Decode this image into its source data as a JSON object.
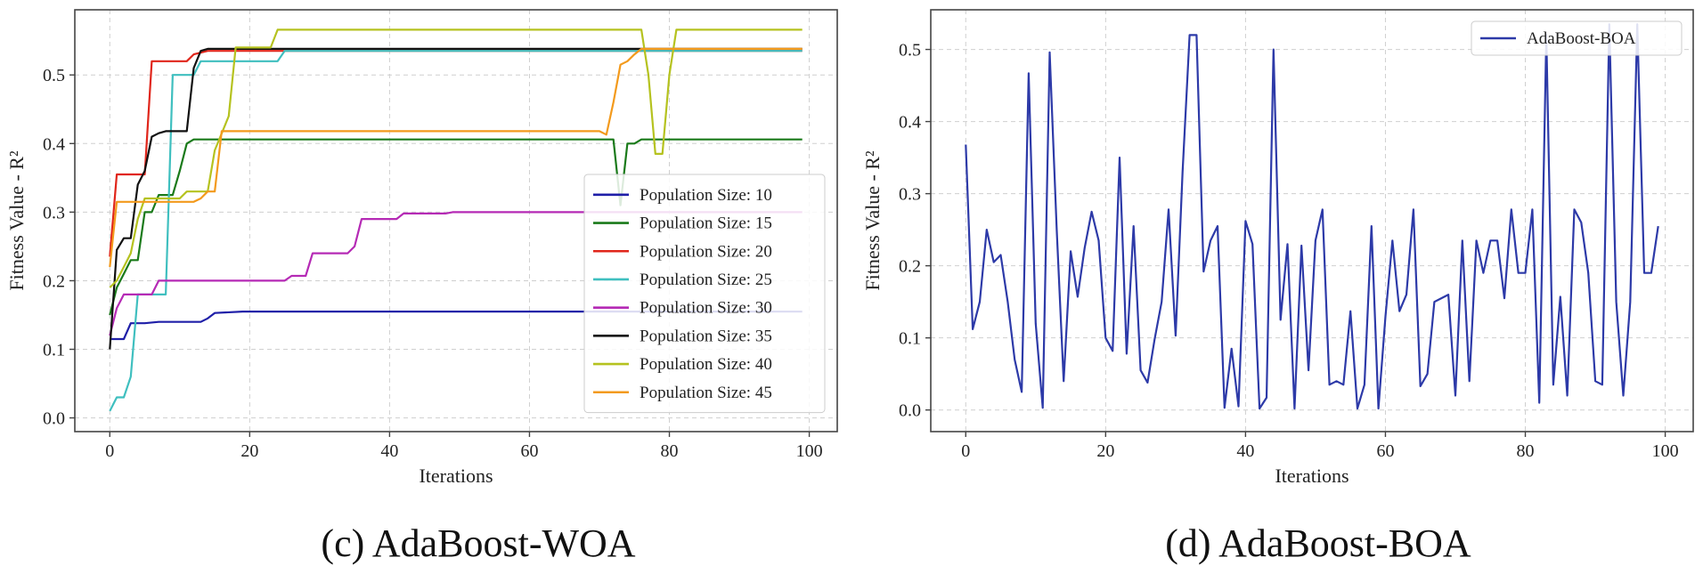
{
  "chart_data": [
    {
      "type": "line",
      "caption": "(c) AdaBoost-WOA",
      "xlabel": "Iterations",
      "ylabel": "Fitness Value - R²",
      "xlim": [
        -5,
        104
      ],
      "ylim": [
        -0.02,
        0.595
      ],
      "xticks": [
        0,
        20,
        40,
        60,
        80,
        100
      ],
      "yticks": [
        0.0,
        0.1,
        0.2,
        0.3,
        0.4,
        0.5
      ],
      "legend_position": "lower-right",
      "series": [
        {
          "name": "Population Size: 10",
          "color": "#1f1fa8",
          "points": [
            [
              0,
              0.115
            ],
            [
              2,
              0.115
            ],
            [
              3,
              0.138
            ],
            [
              5,
              0.138
            ],
            [
              7,
              0.14
            ],
            [
              13,
              0.14
            ],
            [
              14,
              0.145
            ],
            [
              15,
              0.153
            ],
            [
              19,
              0.155
            ],
            [
              73,
              0.155
            ],
            [
              74,
              0.155
            ],
            [
              99,
              0.155
            ]
          ]
        },
        {
          "name": "Population Size: 15",
          "color": "#1a7a1a",
          "points": [
            [
              0,
              0.15
            ],
            [
              1,
              0.19
            ],
            [
              2,
              0.21
            ],
            [
              3,
              0.23
            ],
            [
              4,
              0.23
            ],
            [
              5,
              0.3
            ],
            [
              6,
              0.3
            ],
            [
              7,
              0.325
            ],
            [
              9,
              0.325
            ],
            [
              10,
              0.36
            ],
            [
              11,
              0.4
            ],
            [
              12,
              0.406
            ],
            [
              72,
              0.406
            ],
            [
              73,
              0.31
            ],
            [
              74,
              0.4
            ],
            [
              75,
              0.4
            ],
            [
              76,
              0.406
            ],
            [
              99,
              0.406
            ]
          ]
        },
        {
          "name": "Population Size: 20",
          "color": "#e0261b",
          "points": [
            [
              0,
              0.235
            ],
            [
              1,
              0.355
            ],
            [
              5,
              0.355
            ],
            [
              6,
              0.52
            ],
            [
              11,
              0.52
            ],
            [
              12,
              0.53
            ],
            [
              14,
              0.535
            ],
            [
              99,
              0.535
            ]
          ]
        },
        {
          "name": "Population Size: 25",
          "color": "#3fbfbf",
          "points": [
            [
              0,
              0.01
            ],
            [
              1,
              0.03
            ],
            [
              2,
              0.03
            ],
            [
              3,
              0.06
            ],
            [
              4,
              0.18
            ],
            [
              8,
              0.18
            ],
            [
              9,
              0.5
            ],
            [
              12,
              0.5
            ],
            [
              13,
              0.52
            ],
            [
              24,
              0.52
            ],
            [
              25,
              0.535
            ],
            [
              99,
              0.535
            ]
          ]
        },
        {
          "name": "Population Size: 30",
          "color": "#b52ab5",
          "points": [
            [
              0,
              0.12
            ],
            [
              1,
              0.16
            ],
            [
              2,
              0.18
            ],
            [
              6,
              0.18
            ],
            [
              7,
              0.2
            ],
            [
              20,
              0.2
            ],
            [
              25,
              0.2
            ],
            [
              26,
              0.207
            ],
            [
              28,
              0.207
            ],
            [
              29,
              0.24
            ],
            [
              34,
              0.24
            ],
            [
              35,
              0.25
            ],
            [
              36,
              0.29
            ],
            [
              41,
              0.29
            ],
            [
              42,
              0.298
            ],
            [
              48,
              0.298
            ],
            [
              49,
              0.3
            ],
            [
              99,
              0.3
            ]
          ]
        },
        {
          "name": "Population Size: 35",
          "color": "#111111",
          "points": [
            [
              0,
              0.1
            ],
            [
              1,
              0.245
            ],
            [
              2,
              0.262
            ],
            [
              3,
              0.262
            ],
            [
              4,
              0.34
            ],
            [
              5,
              0.36
            ],
            [
              6,
              0.41
            ],
            [
              7,
              0.415
            ],
            [
              8,
              0.418
            ],
            [
              11,
              0.418
            ],
            [
              12,
              0.51
            ],
            [
              13,
              0.535
            ],
            [
              14,
              0.538
            ],
            [
              99,
              0.538
            ]
          ]
        },
        {
          "name": "Population Size: 40",
          "color": "#b5c21f",
          "points": [
            [
              0,
              0.19
            ],
            [
              1,
              0.2
            ],
            [
              2,
              0.22
            ],
            [
              3,
              0.24
            ],
            [
              4,
              0.29
            ],
            [
              5,
              0.32
            ],
            [
              10,
              0.32
            ],
            [
              11,
              0.33
            ],
            [
              14,
              0.33
            ],
            [
              15,
              0.39
            ],
            [
              17,
              0.44
            ],
            [
              18,
              0.54
            ],
            [
              23,
              0.54
            ],
            [
              24,
              0.566
            ],
            [
              76,
              0.566
            ],
            [
              77,
              0.5
            ],
            [
              78,
              0.385
            ],
            [
              79,
              0.385
            ],
            [
              80,
              0.5
            ],
            [
              81,
              0.566
            ],
            [
              99,
              0.566
            ]
          ]
        },
        {
          "name": "Population Size: 45",
          "color": "#f39a1c",
          "points": [
            [
              0,
              0.22
            ],
            [
              1,
              0.315
            ],
            [
              12,
              0.315
            ],
            [
              13,
              0.32
            ],
            [
              14,
              0.33
            ],
            [
              15,
              0.33
            ],
            [
              16,
              0.418
            ],
            [
              70,
              0.418
            ],
            [
              71,
              0.413
            ],
            [
              72,
              0.46
            ],
            [
              73,
              0.515
            ],
            [
              74,
              0.52
            ],
            [
              75,
              0.53
            ],
            [
              76,
              0.538
            ],
            [
              99,
              0.538
            ]
          ]
        }
      ]
    },
    {
      "type": "line",
      "caption": "(d) AdaBoost-BOA",
      "xlabel": "Iterations",
      "ylabel": "Fitness Value - R²",
      "xlim": [
        -5,
        104
      ],
      "ylim": [
        -0.03,
        0.555
      ],
      "xticks": [
        0,
        20,
        40,
        60,
        80,
        100
      ],
      "yticks": [
        0.0,
        0.1,
        0.2,
        0.3,
        0.4,
        0.5
      ],
      "legend_position": "upper-right",
      "series": [
        {
          "name": "AdaBoost-BOA",
          "color": "#2d3aa8",
          "points": [
            [
              0,
              0.368
            ],
            [
              1,
              0.112
            ],
            [
              2,
              0.15
            ],
            [
              3,
              0.25
            ],
            [
              4,
              0.205
            ],
            [
              5,
              0.215
            ],
            [
              6,
              0.15
            ],
            [
              7,
              0.07
            ],
            [
              8,
              0.025
            ],
            [
              9,
              0.467
            ],
            [
              10,
              0.12
            ],
            [
              11,
              0.003
            ],
            [
              12,
              0.496
            ],
            [
              13,
              0.25
            ],
            [
              14,
              0.04
            ],
            [
              15,
              0.22
            ],
            [
              16,
              0.157
            ],
            [
              17,
              0.225
            ],
            [
              18,
              0.275
            ],
            [
              19,
              0.235
            ],
            [
              20,
              0.1
            ],
            [
              21,
              0.082
            ],
            [
              22,
              0.35
            ],
            [
              23,
              0.078
            ],
            [
              24,
              0.255
            ],
            [
              25,
              0.055
            ],
            [
              26,
              0.038
            ],
            [
              27,
              0.098
            ],
            [
              28,
              0.15
            ],
            [
              29,
              0.278
            ],
            [
              30,
              0.103
            ],
            [
              31,
              0.33
            ],
            [
              32,
              0.52
            ],
            [
              33,
              0.52
            ],
            [
              34,
              0.192
            ],
            [
              35,
              0.235
            ],
            [
              36,
              0.255
            ],
            [
              37,
              0.003
            ],
            [
              38,
              0.085
            ],
            [
              39,
              0.005
            ],
            [
              40,
              0.262
            ],
            [
              41,
              0.23
            ],
            [
              42,
              0.002
            ],
            [
              43,
              0.017
            ],
            [
              44,
              0.5
            ],
            [
              45,
              0.125
            ],
            [
              46,
              0.23
            ],
            [
              47,
              0.002
            ],
            [
              48,
              0.228
            ],
            [
              49,
              0.055
            ],
            [
              50,
              0.235
            ],
            [
              51,
              0.278
            ],
            [
              52,
              0.035
            ],
            [
              53,
              0.04
            ],
            [
              54,
              0.035
            ],
            [
              55,
              0.137
            ],
            [
              56,
              0.002
            ],
            [
              57,
              0.035
            ],
            [
              58,
              0.255
            ],
            [
              59,
              0.002
            ],
            [
              60,
              0.13
            ],
            [
              61,
              0.235
            ],
            [
              62,
              0.137
            ],
            [
              63,
              0.16
            ],
            [
              64,
              0.278
            ],
            [
              65,
              0.033
            ],
            [
              66,
              0.05
            ],
            [
              67,
              0.15
            ],
            [
              68,
              0.155
            ],
            [
              69,
              0.16
            ],
            [
              70,
              0.02
            ],
            [
              71,
              0.235
            ],
            [
              72,
              0.04
            ],
            [
              73,
              0.235
            ],
            [
              74,
              0.19
            ],
            [
              75,
              0.235
            ],
            [
              76,
              0.235
            ],
            [
              77,
              0.155
            ],
            [
              78,
              0.278
            ],
            [
              79,
              0.19
            ],
            [
              80,
              0.19
            ],
            [
              81,
              0.278
            ],
            [
              82,
              0.01
            ],
            [
              83,
              0.52
            ],
            [
              84,
              0.035
            ],
            [
              85,
              0.157
            ],
            [
              86,
              0.02
            ],
            [
              87,
              0.278
            ],
            [
              88,
              0.26
            ],
            [
              89,
              0.19
            ],
            [
              90,
              0.04
            ],
            [
              91,
              0.035
            ],
            [
              92,
              0.535
            ],
            [
              93,
              0.15
            ],
            [
              94,
              0.02
            ],
            [
              95,
              0.15
            ],
            [
              96,
              0.535
            ],
            [
              97,
              0.19
            ],
            [
              98,
              0.19
            ],
            [
              99,
              0.255
            ]
          ]
        }
      ]
    }
  ]
}
